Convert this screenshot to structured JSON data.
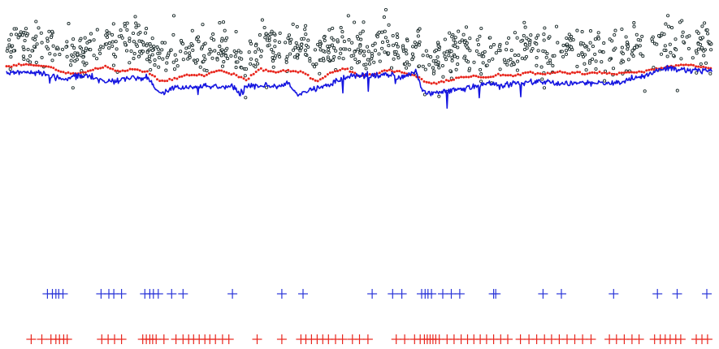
{
  "chart_data": {
    "type": "scatter",
    "title": "",
    "xlabel": "",
    "ylabel": "",
    "axes_visible": false,
    "grid": false,
    "legend": "none",
    "x_range": [
      0,
      100
    ],
    "y_range": [
      0,
      100
    ],
    "colors": {
      "points": "#1a2a2a",
      "smooth": "#e8251c",
      "signal": "#1515e0",
      "blue_marks": "#2a35d8",
      "red_marks": "#e8251c"
    },
    "scatter_points": {
      "name": "",
      "marker": "open-circle",
      "count": 900,
      "x": [
        0,
        100
      ],
      "center_y_follows": "smooth_line",
      "typical_offset_above_smooth": [
        5,
        20
      ],
      "extreme_high_y": 100,
      "extreme_low_y": 44
    },
    "series": [
      {
        "name": "",
        "style": "red dotted line",
        "x": [
          0,
          3,
          6,
          8,
          10,
          12,
          14,
          16,
          18,
          20,
          22,
          24,
          26,
          28,
          30,
          32,
          34,
          36,
          38,
          40,
          42,
          44,
          46,
          48,
          50,
          52,
          54,
          56,
          58,
          60,
          62,
          64,
          66,
          68,
          70,
          72,
          74,
          76,
          78,
          80,
          82,
          84,
          86,
          88,
          90,
          92,
          94,
          96,
          98,
          100
        ],
        "values": [
          67,
          68,
          67,
          64,
          63,
          65,
          67,
          64,
          66,
          64,
          59,
          61,
          63,
          62,
          65,
          63,
          60,
          66,
          64,
          65,
          64,
          59,
          64,
          66,
          62,
          63,
          65,
          64,
          62,
          58,
          59,
          61,
          62,
          61,
          63,
          62,
          64,
          63,
          64,
          64,
          63,
          64,
          63,
          64,
          64,
          66,
          67,
          68,
          67,
          66
        ]
      },
      {
        "name": "",
        "style": "blue noisy line",
        "x": [
          0,
          3,
          6,
          8,
          10,
          12,
          14,
          16,
          18,
          20,
          21,
          22,
          24,
          26,
          28,
          30,
          32,
          33,
          34,
          36,
          38,
          40,
          41,
          42,
          44,
          46,
          48,
          50,
          52,
          54,
          56,
          58,
          59,
          60,
          62,
          64,
          66,
          68,
          70,
          72,
          74,
          76,
          78,
          80,
          82,
          84,
          86,
          88,
          90,
          92,
          94,
          96,
          98,
          100
        ],
        "values": [
          64,
          64,
          63,
          60,
          62,
          62,
          59,
          60,
          61,
          61,
          56,
          53,
          56,
          56,
          57,
          56,
          57,
          52,
          57,
          57,
          56,
          58,
          52,
          53,
          56,
          58,
          61,
          63,
          62,
          63,
          61,
          64,
          54,
          53,
          54,
          55,
          56,
          58,
          57,
          58,
          59,
          59,
          58,
          58,
          58,
          59,
          58,
          60,
          62,
          65,
          66,
          65,
          65,
          65
        ]
      }
    ],
    "rug_marks": [
      {
        "name": "",
        "color": "#2a35d8",
        "marker": "plus",
        "x": [
          5.8,
          6.5,
          7.0,
          7.4,
          8.0,
          13.4,
          14.5,
          15.2,
          16.3,
          19.6,
          20.3,
          20.8,
          21.5,
          23.4,
          25.0,
          32.0,
          39.0,
          42.0,
          51.8,
          54.7,
          56.0,
          58.8,
          59.3,
          59.7,
          60.2,
          61.8,
          63.0,
          64.2,
          69.0,
          69.3,
          76.0,
          78.6,
          86.0,
          92.2,
          95.0,
          99.2
        ]
      },
      {
        "name": "",
        "color": "#e8251c",
        "marker": "plus",
        "x": [
          3.5,
          5.0,
          6.3,
          7.0,
          7.5,
          8.1,
          8.6,
          13.5,
          14.4,
          15.3,
          16.3,
          19.3,
          19.8,
          20.3,
          20.7,
          21.2,
          22.3,
          24.0,
          25.0,
          25.8,
          26.5,
          27.3,
          28.1,
          28.8,
          29.6,
          30.6,
          31.5,
          35.5,
          39.0,
          41.7,
          42.4,
          43.2,
          44.0,
          44.8,
          45.6,
          46.6,
          47.6,
          49.0,
          50.0,
          51.2,
          55.2,
          56.4,
          57.8,
          58.6,
          59.2,
          59.6,
          60.0,
          60.4,
          60.8,
          61.3,
          62.4,
          63.4,
          64.4,
          65.3,
          66.2,
          67.1,
          68.0,
          69.0,
          70.0,
          71.0,
          72.8,
          74.0,
          75.1,
          76.2,
          77.2,
          78.3,
          79.4,
          80.5,
          81.6,
          82.8,
          85.4,
          86.4,
          87.5,
          88.6,
          89.6,
          91.8,
          92.6,
          93.3,
          94.0,
          94.8,
          95.5,
          97.7,
          98.5,
          99.3
        ]
      }
    ]
  }
}
